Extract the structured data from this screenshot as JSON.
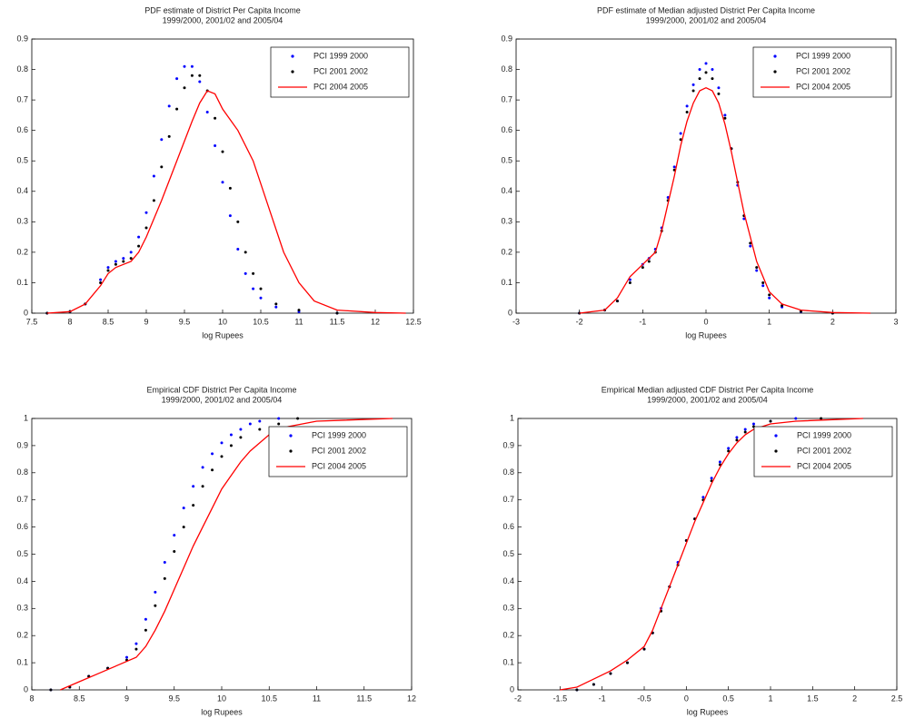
{
  "chart_data": [
    {
      "type": "line",
      "title": [
        "PDF estimate of District Per Capita Income",
        "1999/2000, 2001/02 and 2005/04"
      ],
      "xlabel": "log Rupees",
      "xlim": [
        7.5,
        12.5
      ],
      "xticks": [
        7.5,
        8,
        8.5,
        9,
        9.5,
        10,
        10.5,
        11,
        11.5,
        12,
        12.5
      ],
      "ylim": [
        0,
        0.9
      ],
      "yticks": [
        0,
        0.1,
        0.2,
        0.3,
        0.4,
        0.5,
        0.6,
        0.7,
        0.8,
        0.9
      ],
      "legend": "upper right",
      "series": [
        {
          "name": "PCI  1999 2000",
          "color": "#0000ff",
          "style": "dots",
          "x": [
            7.7,
            8.0,
            8.2,
            8.4,
            8.5,
            8.6,
            8.7,
            8.8,
            8.9,
            9.0,
            9.1,
            9.2,
            9.3,
            9.4,
            9.5,
            9.6,
            9.7,
            9.8,
            9.9,
            10.0,
            10.1,
            10.2,
            10.3,
            10.4,
            10.5,
            10.7,
            11.0,
            11.5
          ],
          "values": [
            0,
            0.005,
            0.03,
            0.11,
            0.15,
            0.17,
            0.18,
            0.2,
            0.25,
            0.33,
            0.45,
            0.57,
            0.68,
            0.77,
            0.81,
            0.81,
            0.76,
            0.66,
            0.55,
            0.43,
            0.32,
            0.21,
            0.13,
            0.08,
            0.05,
            0.02,
            0.005,
            0
          ]
        },
        {
          "name": "PCI 2001 2002",
          "color": "#000000",
          "style": "dots",
          "x": [
            7.7,
            8.0,
            8.2,
            8.4,
            8.5,
            8.6,
            8.7,
            8.8,
            8.9,
            9.0,
            9.1,
            9.2,
            9.3,
            9.4,
            9.5,
            9.6,
            9.7,
            9.8,
            9.9,
            10.0,
            10.1,
            10.2,
            10.3,
            10.4,
            10.5,
            10.7,
            11.0,
            11.5
          ],
          "values": [
            0,
            0.005,
            0.03,
            0.1,
            0.14,
            0.16,
            0.17,
            0.18,
            0.22,
            0.28,
            0.37,
            0.48,
            0.58,
            0.67,
            0.74,
            0.78,
            0.78,
            0.73,
            0.64,
            0.53,
            0.41,
            0.3,
            0.2,
            0.13,
            0.08,
            0.03,
            0.01,
            0
          ]
        },
        {
          "name": "PCI 2004 2005",
          "color": "#ff0000",
          "style": "line",
          "x": [
            7.7,
            8.0,
            8.2,
            8.4,
            8.5,
            8.6,
            8.7,
            8.8,
            8.9,
            9.0,
            9.2,
            9.4,
            9.6,
            9.7,
            9.8,
            9.9,
            10.0,
            10.2,
            10.4,
            10.6,
            10.8,
            11.0,
            11.2,
            11.5,
            12.0,
            12.4
          ],
          "values": [
            0,
            0.005,
            0.03,
            0.09,
            0.13,
            0.15,
            0.16,
            0.17,
            0.2,
            0.25,
            0.37,
            0.5,
            0.63,
            0.69,
            0.73,
            0.72,
            0.67,
            0.6,
            0.5,
            0.35,
            0.2,
            0.1,
            0.04,
            0.01,
            0.002,
            0
          ]
        }
      ]
    },
    {
      "type": "line",
      "title": [
        "PDF estimate of Median adjusted District Per Capita Income",
        "1999/2000, 2001/02 and 2005/04"
      ],
      "xlabel": "log Rupees",
      "xlim": [
        -3,
        3
      ],
      "xticks": [
        -3,
        -2,
        -1,
        0,
        1,
        2,
        3
      ],
      "ylim": [
        0,
        0.9
      ],
      "yticks": [
        0,
        0.1,
        0.2,
        0.3,
        0.4,
        0.5,
        0.6,
        0.7,
        0.8,
        0.9
      ],
      "legend": "upper right",
      "series": [
        {
          "name": "PCI  1999 2000",
          "color": "#0000ff",
          "style": "dots",
          "x": [
            -2.0,
            -1.6,
            -1.4,
            -1.2,
            -1.0,
            -0.9,
            -0.8,
            -0.7,
            -0.6,
            -0.5,
            -0.4,
            -0.3,
            -0.2,
            -0.1,
            0,
            0.1,
            0.2,
            0.3,
            0.4,
            0.5,
            0.6,
            0.7,
            0.8,
            0.9,
            1.0,
            1.2,
            1.5,
            2.0
          ],
          "values": [
            0,
            0.01,
            0.04,
            0.11,
            0.16,
            0.18,
            0.21,
            0.28,
            0.38,
            0.48,
            0.59,
            0.68,
            0.75,
            0.8,
            0.82,
            0.8,
            0.74,
            0.65,
            0.54,
            0.42,
            0.31,
            0.22,
            0.14,
            0.09,
            0.05,
            0.02,
            0.005,
            0
          ]
        },
        {
          "name": "PCI 2001 2002",
          "color": "#000000",
          "style": "dots",
          "x": [
            -2.0,
            -1.6,
            -1.4,
            -1.2,
            -1.0,
            -0.9,
            -0.8,
            -0.7,
            -0.6,
            -0.5,
            -0.4,
            -0.3,
            -0.2,
            -0.1,
            0,
            0.1,
            0.2,
            0.3,
            0.4,
            0.5,
            0.6,
            0.7,
            0.8,
            0.9,
            1.0,
            1.2,
            1.5,
            2.0
          ],
          "values": [
            0,
            0.01,
            0.04,
            0.1,
            0.15,
            0.17,
            0.2,
            0.27,
            0.37,
            0.47,
            0.57,
            0.66,
            0.73,
            0.77,
            0.79,
            0.77,
            0.72,
            0.64,
            0.54,
            0.43,
            0.32,
            0.23,
            0.15,
            0.1,
            0.06,
            0.025,
            0.006,
            0
          ]
        },
        {
          "name": "PCI 2004 2005",
          "color": "#ff0000",
          "style": "line",
          "x": [
            -2.0,
            -1.6,
            -1.4,
            -1.2,
            -1.0,
            -0.9,
            -0.8,
            -0.7,
            -0.6,
            -0.5,
            -0.4,
            -0.3,
            -0.2,
            -0.1,
            0,
            0.1,
            0.2,
            0.3,
            0.4,
            0.5,
            0.6,
            0.7,
            0.8,
            0.9,
            1.0,
            1.2,
            1.5,
            2.0,
            2.6
          ],
          "values": [
            0,
            0.01,
            0.05,
            0.12,
            0.16,
            0.18,
            0.2,
            0.27,
            0.36,
            0.45,
            0.55,
            0.63,
            0.69,
            0.73,
            0.74,
            0.73,
            0.69,
            0.62,
            0.53,
            0.43,
            0.33,
            0.25,
            0.17,
            0.12,
            0.07,
            0.03,
            0.01,
            0.002,
            0
          ]
        }
      ]
    },
    {
      "type": "line",
      "title": [
        "Empirical CDF District Per Capita Income",
        "1999/2000, 2001/02 and 2005/04"
      ],
      "xlabel": "log Rupees",
      "xlim": [
        8,
        12
      ],
      "xticks": [
        8,
        8.5,
        9,
        9.5,
        10,
        10.5,
        11,
        11.5,
        12
      ],
      "ylim": [
        0,
        1
      ],
      "yticks": [
        0,
        0.1,
        0.2,
        0.3,
        0.4,
        0.5,
        0.6,
        0.7,
        0.8,
        0.9,
        1
      ],
      "legend": "upper right",
      "series": [
        {
          "name": "PCI  1999 2000",
          "color": "#0000ff",
          "style": "dots",
          "x": [
            8.2,
            8.4,
            8.6,
            8.8,
            9.0,
            9.1,
            9.2,
            9.3,
            9.4,
            9.5,
            9.6,
            9.7,
            9.8,
            9.9,
            10.0,
            10.1,
            10.2,
            10.3,
            10.4,
            10.6
          ],
          "values": [
            0,
            0.01,
            0.05,
            0.08,
            0.12,
            0.17,
            0.26,
            0.36,
            0.47,
            0.57,
            0.67,
            0.75,
            0.82,
            0.87,
            0.91,
            0.94,
            0.96,
            0.98,
            0.99,
            1
          ]
        },
        {
          "name": "PCI 2001 2002",
          "color": "#000000",
          "style": "dots",
          "x": [
            8.2,
            8.4,
            8.6,
            8.8,
            9.0,
            9.1,
            9.2,
            9.3,
            9.4,
            9.5,
            9.6,
            9.7,
            9.8,
            9.9,
            10.0,
            10.1,
            10.2,
            10.4,
            10.6,
            10.8
          ],
          "values": [
            0,
            0.01,
            0.05,
            0.08,
            0.11,
            0.15,
            0.22,
            0.31,
            0.41,
            0.51,
            0.6,
            0.68,
            0.75,
            0.81,
            0.86,
            0.9,
            0.93,
            0.96,
            0.98,
            1
          ]
        },
        {
          "name": "PCI 2004 2005",
          "color": "#ff0000",
          "style": "line",
          "x": [
            8.3,
            8.5,
            8.7,
            8.9,
            9.1,
            9.2,
            9.3,
            9.4,
            9.5,
            9.6,
            9.7,
            9.8,
            9.9,
            10.0,
            10.1,
            10.2,
            10.3,
            10.4,
            10.5,
            10.7,
            11.0,
            11.8
          ],
          "values": [
            0,
            0.03,
            0.06,
            0.09,
            0.12,
            0.16,
            0.22,
            0.29,
            0.37,
            0.45,
            0.53,
            0.6,
            0.67,
            0.74,
            0.79,
            0.84,
            0.88,
            0.91,
            0.94,
            0.97,
            0.99,
            1
          ]
        }
      ]
    },
    {
      "type": "line",
      "title": [
        "Empirical Median adjusted CDF District Per Capita Income",
        "1999/2000, 2001/02 and 2005/04"
      ],
      "xlabel": "log Rupees",
      "xlim": [
        -2,
        2.5
      ],
      "xticks": [
        -2,
        -1.5,
        -1,
        -0.5,
        0,
        0.5,
        1,
        1.5,
        2,
        2.5
      ],
      "ylim": [
        0,
        1
      ],
      "yticks": [
        0,
        0.1,
        0.2,
        0.3,
        0.4,
        0.5,
        0.6,
        0.7,
        0.8,
        0.9,
        1
      ],
      "legend": "upper right",
      "series": [
        {
          "name": "PCI  1999 2000",
          "color": "#0000ff",
          "style": "dots",
          "x": [
            -1.3,
            -1.1,
            -0.9,
            -0.7,
            -0.5,
            -0.4,
            -0.3,
            -0.2,
            -0.1,
            0,
            0.1,
            0.2,
            0.3,
            0.4,
            0.5,
            0.6,
            0.7,
            0.8,
            1.0,
            1.3
          ],
          "values": [
            0,
            0.02,
            0.06,
            0.1,
            0.15,
            0.21,
            0.3,
            0.38,
            0.47,
            0.55,
            0.63,
            0.71,
            0.78,
            0.84,
            0.89,
            0.93,
            0.96,
            0.98,
            0.99,
            1
          ]
        },
        {
          "name": "PCI 2001 2002",
          "color": "#000000",
          "style": "dots",
          "x": [
            -1.3,
            -1.1,
            -0.9,
            -0.7,
            -0.5,
            -0.4,
            -0.3,
            -0.2,
            -0.1,
            0,
            0.1,
            0.2,
            0.3,
            0.4,
            0.5,
            0.6,
            0.7,
            0.8,
            1.0,
            1.6
          ],
          "values": [
            0,
            0.02,
            0.06,
            0.1,
            0.15,
            0.21,
            0.29,
            0.38,
            0.46,
            0.55,
            0.63,
            0.7,
            0.77,
            0.83,
            0.88,
            0.92,
            0.95,
            0.97,
            0.99,
            1
          ]
        },
        {
          "name": "PCI 2004 2005",
          "color": "#ff0000",
          "style": "line",
          "x": [
            -1.5,
            -1.3,
            -1.1,
            -0.9,
            -0.7,
            -0.5,
            -0.4,
            -0.3,
            -0.2,
            -0.1,
            0,
            0.1,
            0.2,
            0.3,
            0.4,
            0.5,
            0.6,
            0.7,
            0.8,
            1.0,
            1.3,
            2.1
          ],
          "values": [
            0,
            0.01,
            0.04,
            0.07,
            0.11,
            0.16,
            0.22,
            0.3,
            0.38,
            0.46,
            0.54,
            0.62,
            0.69,
            0.76,
            0.82,
            0.87,
            0.91,
            0.94,
            0.96,
            0.98,
            0.99,
            1
          ]
        }
      ]
    }
  ]
}
